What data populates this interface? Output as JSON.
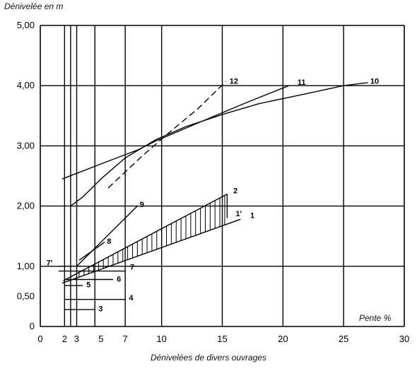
{
  "figure": {
    "y_axis_title": "Dénivelée en m",
    "x_axis_title": "Pente %",
    "caption": "Dénivelées de divers ouvrages"
  },
  "chart_data": {
    "type": "line",
    "title": "",
    "ylabel": "Dénivelée en m",
    "xlabel": "Pente %",
    "xlim": [
      0,
      30
    ],
    "ylim": [
      0,
      5
    ],
    "x_ticks": [
      0,
      2,
      3,
      5,
      7,
      10,
      15,
      20,
      25,
      30
    ],
    "x_tick_labels": [
      "0",
      "2",
      "3",
      "5",
      "7",
      "10",
      "15",
      "20",
      "25",
      "30"
    ],
    "y_ticks": [
      0,
      0.5,
      1,
      2,
      3,
      4,
      5
    ],
    "y_tick_labels": [
      "0",
      "0,50",
      "1,00",
      "2,00",
      "3,00",
      "4,00",
      "5,00"
    ],
    "grid": true,
    "grid_x": [
      2,
      2.5,
      3,
      4.5,
      7,
      10,
      15,
      20,
      25,
      30
    ],
    "grid_y": [
      1,
      2,
      3,
      4,
      5
    ],
    "series": [
      {
        "name": "1",
        "style": "solid",
        "x": [
          1.8,
          16.5
        ],
        "y": [
          0.72,
          1.78
        ]
      },
      {
        "name": "2",
        "style": "solid",
        "x": [
          1.9,
          15.4
        ],
        "y": [
          0.76,
          2.2
        ]
      },
      {
        "name": "1'",
        "style": "solid",
        "x": [
          15.4,
          15.4
        ],
        "y": [
          1.8,
          2.2
        ]
      },
      {
        "name": "3",
        "style": "solid",
        "x": [
          2,
          4.5
        ],
        "y": [
          0.28,
          0.28
        ]
      },
      {
        "name": "4",
        "style": "solid",
        "x": [
          2,
          7
        ],
        "y": [
          0.45,
          0.45
        ]
      },
      {
        "name": "5",
        "style": "solid",
        "x": [
          2,
          3.5
        ],
        "y": [
          0.68,
          0.68
        ]
      },
      {
        "name": "6",
        "style": "solid",
        "x": [
          2,
          6
        ],
        "y": [
          0.78,
          0.78
        ]
      },
      {
        "name": "7",
        "style": "solid",
        "x": [
          1.5,
          7
        ],
        "y": [
          0.92,
          0.92
        ]
      },
      {
        "name": "7'",
        "style": "solid",
        "x": [
          1.5,
          3.4
        ],
        "y": [
          1.0,
          1.0
        ]
      },
      {
        "name": "8",
        "style": "solid",
        "x": [
          3.2,
          5.3
        ],
        "y": [
          1.1,
          1.4
        ]
      },
      {
        "name": "9",
        "style": "solid",
        "x": [
          3.0,
          8.0
        ],
        "y": [
          1.0,
          2.0
        ]
      },
      {
        "name": "10",
        "style": "solid",
        "x": [
          2.5,
          3.5,
          5,
          7,
          9.5,
          12,
          15,
          18,
          22,
          25,
          27
        ],
        "y": [
          2.0,
          2.15,
          2.45,
          2.8,
          3.1,
          3.32,
          3.52,
          3.7,
          3.87,
          4.0,
          4.05
        ]
      },
      {
        "name": "11",
        "style": "solid",
        "x": [
          1.8,
          5,
          8,
          9.5,
          13,
          17,
          20.5
        ],
        "y": [
          2.45,
          2.7,
          2.93,
          3.08,
          3.38,
          3.72,
          4.0
        ]
      },
      {
        "name": "12",
        "style": "dashed",
        "x": [
          5.6,
          8.5,
          10.5,
          13,
          15.3
        ],
        "y": [
          2.3,
          2.85,
          3.2,
          3.62,
          4.07
        ]
      }
    ],
    "series_labels": [
      {
        "text": "1",
        "x": 17.3,
        "y": 1.85
      },
      {
        "text": "1'",
        "x": 16.1,
        "y": 1.88
      },
      {
        "text": "2",
        "x": 15.9,
        "y": 2.26
      },
      {
        "text": "3",
        "x": 4.8,
        "y": 0.3
      },
      {
        "text": "4",
        "x": 7.3,
        "y": 0.48
      },
      {
        "text": "5",
        "x": 3.8,
        "y": 0.7
      },
      {
        "text": "6",
        "x": 6.3,
        "y": 0.79
      },
      {
        "text": "7",
        "x": 7.4,
        "y": 0.99
      },
      {
        "text": "7'",
        "x": 0.5,
        "y": 1.06
      },
      {
        "text": "8",
        "x": 5.5,
        "y": 1.42
      },
      {
        "text": "9",
        "x": 8.2,
        "y": 2.03
      },
      {
        "text": "10",
        "x": 27.2,
        "y": 4.08
      },
      {
        "text": "11",
        "x": 21.2,
        "y": 4.06
      },
      {
        "text": "12",
        "x": 15.6,
        "y": 4.08
      }
    ],
    "shaded_region": {
      "between": [
        "1",
        "2"
      ],
      "x": [
        3.2,
        15.4
      ],
      "style": "vertical hatching"
    }
  }
}
